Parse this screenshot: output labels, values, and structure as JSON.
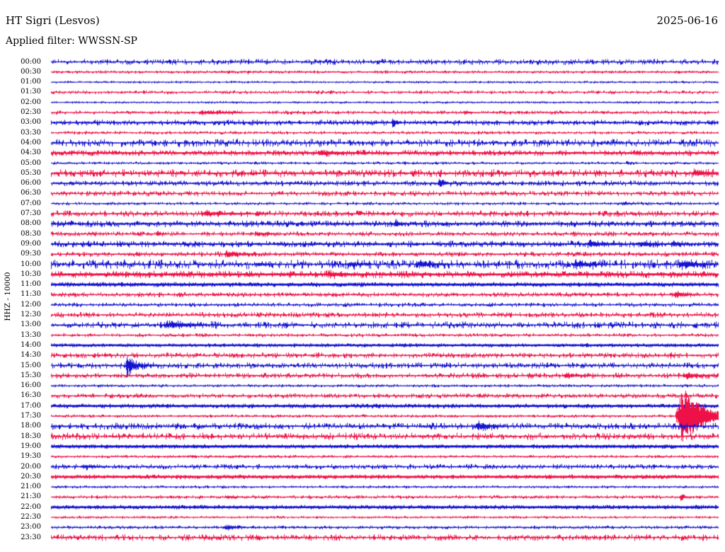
{
  "header": {
    "station": "HT Sigri (Lesvos)",
    "date": "2025-06-16",
    "filter": "Applied filter: WWSSN-SP",
    "axis_label": "HHZ - 10000"
  },
  "colors": {
    "blue": "#1512d1",
    "red": "#ee1147",
    "text": "#000000",
    "background": "#ffffff"
  },
  "chart_data": {
    "type": "helicorder",
    "title": "HT Sigri (Lesvos) HHZ day plot 2025-06-16, WWSSN-SP filter",
    "row_minutes": 30,
    "x_span_minutes": 30,
    "legend": "48 half-hour rows, alternating blue (:00) and red (:30); largest event burst on the 17:30 row near the right edge; sharp local spike on the 15:00 row near the left",
    "rows": [
      {
        "t": "00:00",
        "c": "b",
        "n": 0.9,
        "th": 1.2,
        "ev": [
          {
            "p": 0.27,
            "a": 1.5,
            "w": 2,
            "c": 3
          }
        ]
      },
      {
        "t": "00:30",
        "c": "r",
        "n": 0.45,
        "th": 1.2,
        "ev": [
          {
            "p": 0.295,
            "a": 2,
            "w": 1,
            "c": 2
          },
          {
            "p": 0.94,
            "a": 1.5,
            "w": 1,
            "c": 2
          }
        ]
      },
      {
        "t": "01:00",
        "c": "b",
        "n": 0.35,
        "th": 1.0,
        "ev": []
      },
      {
        "t": "01:30",
        "c": "r",
        "n": 0.55,
        "th": 1.0,
        "ev": []
      },
      {
        "t": "02:00",
        "c": "b",
        "n": 0.35,
        "th": 1.0,
        "ev": []
      },
      {
        "t": "02:30",
        "c": "r",
        "n": 0.6,
        "th": 1.1,
        "ev": [
          {
            "p": 0.225,
            "a": 2.2,
            "w": 4,
            "c": 28
          },
          {
            "p": 0.62,
            "a": 1.5,
            "w": 2,
            "c": 8
          }
        ]
      },
      {
        "t": "03:00",
        "c": "b",
        "n": 0.85,
        "th": 1.7,
        "ev": [
          {
            "p": 0.512,
            "a": 7,
            "w": 2,
            "c": 4
          }
        ]
      },
      {
        "t": "03:30",
        "c": "r",
        "n": 0.5,
        "th": 1.0,
        "ev": []
      },
      {
        "t": "04:00",
        "c": "b",
        "n": 1.25,
        "th": 1.4,
        "ev": []
      },
      {
        "t": "04:30",
        "c": "r",
        "n": 0.8,
        "th": 2.1,
        "ev": [
          {
            "p": 0.405,
            "a": 2.5,
            "w": 6,
            "c": 20
          },
          {
            "p": 0.468,
            "a": 4,
            "w": 1,
            "c": 3
          }
        ]
      },
      {
        "t": "05:00",
        "c": "b",
        "n": 0.45,
        "th": 1.0,
        "ev": [
          {
            "p": 0.53,
            "a": 2,
            "w": 1,
            "c": 2
          },
          {
            "p": 0.863,
            "a": 2.5,
            "w": 1,
            "c": 3
          }
        ]
      },
      {
        "t": "05:30",
        "c": "r",
        "n": 1.25,
        "th": 1.7,
        "ev": [
          {
            "p": 0.965,
            "a": 3,
            "w": 5,
            "c": 20
          }
        ]
      },
      {
        "t": "06:00",
        "c": "b",
        "n": 0.85,
        "th": 1.5,
        "ev": [
          {
            "p": 0.582,
            "a": 5,
            "w": 3,
            "c": 6
          }
        ]
      },
      {
        "t": "06:30",
        "c": "r",
        "n": 0.85,
        "th": 1.2,
        "ev": []
      },
      {
        "t": "07:00",
        "c": "b",
        "n": 0.5,
        "th": 1.0,
        "ev": [
          {
            "p": 0.858,
            "a": 2,
            "w": 3,
            "c": 10
          }
        ]
      },
      {
        "t": "07:30",
        "c": "r",
        "n": 0.95,
        "th": 1.4,
        "ev": [
          {
            "p": 0.232,
            "a": 2.5,
            "w": 8,
            "c": 30
          },
          {
            "p": 0.309,
            "a": 4,
            "w": 2,
            "c": 4
          }
        ]
      },
      {
        "t": "08:00",
        "c": "b",
        "n": 0.95,
        "th": 1.9,
        "ev": [
          {
            "p": 0.516,
            "a": 5,
            "w": 2,
            "c": 5
          }
        ]
      },
      {
        "t": "08:30",
        "c": "r",
        "n": 0.75,
        "th": 1.2,
        "ev": [
          {
            "p": 0.159,
            "a": 4,
            "w": 2,
            "c": 4
          },
          {
            "p": 0.31,
            "a": 2,
            "w": 5,
            "c": 15
          }
        ]
      },
      {
        "t": "09:00",
        "c": "b",
        "n": 0.95,
        "th": 1.9,
        "ev": [
          {
            "p": 0.81,
            "a": 3,
            "w": 8,
            "c": 18
          },
          {
            "p": 0.885,
            "a": 3.5,
            "w": 4,
            "c": 10
          },
          {
            "p": 0.932,
            "a": 2.5,
            "w": 4,
            "c": 10
          }
        ]
      },
      {
        "t": "09:30",
        "c": "r",
        "n": 0.75,
        "th": 1.4,
        "ev": [
          {
            "p": 0.266,
            "a": 3,
            "w": 8,
            "c": 18
          }
        ]
      },
      {
        "t": "10:00",
        "c": "b",
        "n": 1.55,
        "th": 1.4,
        "ev": [
          {
            "p": 0.31,
            "a": 2,
            "w": 6,
            "c": 12
          },
          {
            "p": 0.45,
            "a": 2.5,
            "w": 8,
            "c": 15
          },
          {
            "p": 0.555,
            "a": 3,
            "w": 10,
            "c": 20
          },
          {
            "p": 0.79,
            "a": 3,
            "w": 10,
            "c": 20
          },
          {
            "p": 0.95,
            "a": 3.5,
            "w": 12,
            "c": 22
          }
        ]
      },
      {
        "t": "10:30",
        "c": "r",
        "n": 1.0,
        "th": 2.5,
        "ev": [
          {
            "p": 0.42,
            "a": 2,
            "w": 8,
            "c": 15
          }
        ]
      },
      {
        "t": "11:00",
        "c": "b",
        "n": 0.55,
        "th": 2.7,
        "ev": [
          {
            "p": 0.79,
            "a": 2,
            "w": 1,
            "c": 2
          }
        ]
      },
      {
        "t": "11:30",
        "c": "r",
        "n": 0.75,
        "th": 1.3,
        "ev": [
          {
            "p": 0.937,
            "a": 3,
            "w": 6,
            "c": 14
          }
        ]
      },
      {
        "t": "12:00",
        "c": "b",
        "n": 0.65,
        "th": 1.2,
        "ev": []
      },
      {
        "t": "12:30",
        "c": "r",
        "n": 0.85,
        "th": 1.3,
        "ev": []
      },
      {
        "t": "13:00",
        "c": "b",
        "n": 1.1,
        "th": 1.4,
        "ev": [
          {
            "p": 0.18,
            "a": 3.5,
            "w": 14,
            "c": 26
          },
          {
            "p": 0.608,
            "a": 2.5,
            "w": 1,
            "c": 3
          }
        ]
      },
      {
        "t": "13:30",
        "c": "r",
        "n": 0.55,
        "th": 1.1,
        "ev": []
      },
      {
        "t": "14:00",
        "c": "b",
        "n": 0.45,
        "th": 2.3,
        "ev": []
      },
      {
        "t": "14:30",
        "c": "r",
        "n": 0.85,
        "th": 1.3,
        "ev": [
          {
            "p": 0.928,
            "a": 3,
            "w": 1,
            "c": 3
          }
        ]
      },
      {
        "t": "15:00",
        "c": "b",
        "n": 0.95,
        "th": 1.4,
        "ev": [
          {
            "p": 0.1136,
            "a": 16,
            "w": 2,
            "c": 4
          },
          {
            "p": 0.118,
            "a": 5,
            "w": 2,
            "c": 16
          }
        ]
      },
      {
        "t": "15:30",
        "c": "r",
        "n": 0.85,
        "th": 1.4,
        "ev": [
          {
            "p": 0.773,
            "a": 3,
            "w": 6,
            "c": 14
          },
          {
            "p": 0.955,
            "a": 3,
            "w": 10,
            "c": 18
          }
        ]
      },
      {
        "t": "16:00",
        "c": "b",
        "n": 0.45,
        "th": 1.1,
        "ev": []
      },
      {
        "t": "16:30",
        "c": "r",
        "n": 0.75,
        "th": 1.3,
        "ev": []
      },
      {
        "t": "17:00",
        "c": "b",
        "n": 0.55,
        "th": 2.5,
        "ev": []
      },
      {
        "t": "17:30",
        "c": "r",
        "n": 0.45,
        "th": 1.2,
        "ev": [
          {
            "p": 0.9458,
            "a": 38,
            "w": 10,
            "c": 22
          },
          {
            "p": 0.952,
            "a": 9,
            "w": 4,
            "c": 55
          }
        ]
      },
      {
        "t": "18:00",
        "c": "b",
        "n": 1.05,
        "th": 1.5,
        "ev": [
          {
            "p": 0.64,
            "a": 5,
            "w": 4,
            "c": 14
          }
        ]
      },
      {
        "t": "18:30",
        "c": "r",
        "n": 1.15,
        "th": 1.4,
        "ev": []
      },
      {
        "t": "19:00",
        "c": "b",
        "n": 0.45,
        "th": 2.7,
        "ev": []
      },
      {
        "t": "19:30",
        "c": "r",
        "n": 0.45,
        "th": 1.1,
        "ev": [
          {
            "p": 0.215,
            "a": 2,
            "w": 1,
            "c": 2
          }
        ]
      },
      {
        "t": "20:00",
        "c": "b",
        "n": 0.8,
        "th": 1.3,
        "ev": [
          {
            "p": 0.05,
            "a": 2,
            "w": 8,
            "c": 15
          }
        ]
      },
      {
        "t": "20:30",
        "c": "r",
        "n": 0.5,
        "th": 2.5,
        "ev": []
      },
      {
        "t": "21:00",
        "c": "b",
        "n": 0.4,
        "th": 1.1,
        "ev": []
      },
      {
        "t": "21:30",
        "c": "r",
        "n": 0.55,
        "th": 1.1,
        "ev": [
          {
            "p": 0.265,
            "a": 1.5,
            "w": 6,
            "c": 10
          },
          {
            "p": 0.944,
            "a": 5,
            "w": 2,
            "c": 4
          }
        ]
      },
      {
        "t": "22:00",
        "c": "b",
        "n": 0.5,
        "th": 2.5,
        "ev": []
      },
      {
        "t": "22:30",
        "c": "r",
        "n": 0.4,
        "th": 1.0,
        "ev": []
      },
      {
        "t": "23:00",
        "c": "b",
        "n": 0.5,
        "th": 1.2,
        "ev": [
          {
            "p": 0.265,
            "a": 2.5,
            "w": 8,
            "c": 12
          }
        ]
      },
      {
        "t": "23:30",
        "c": "r",
        "n": 1.0,
        "th": 1.4,
        "ev": []
      }
    ]
  }
}
